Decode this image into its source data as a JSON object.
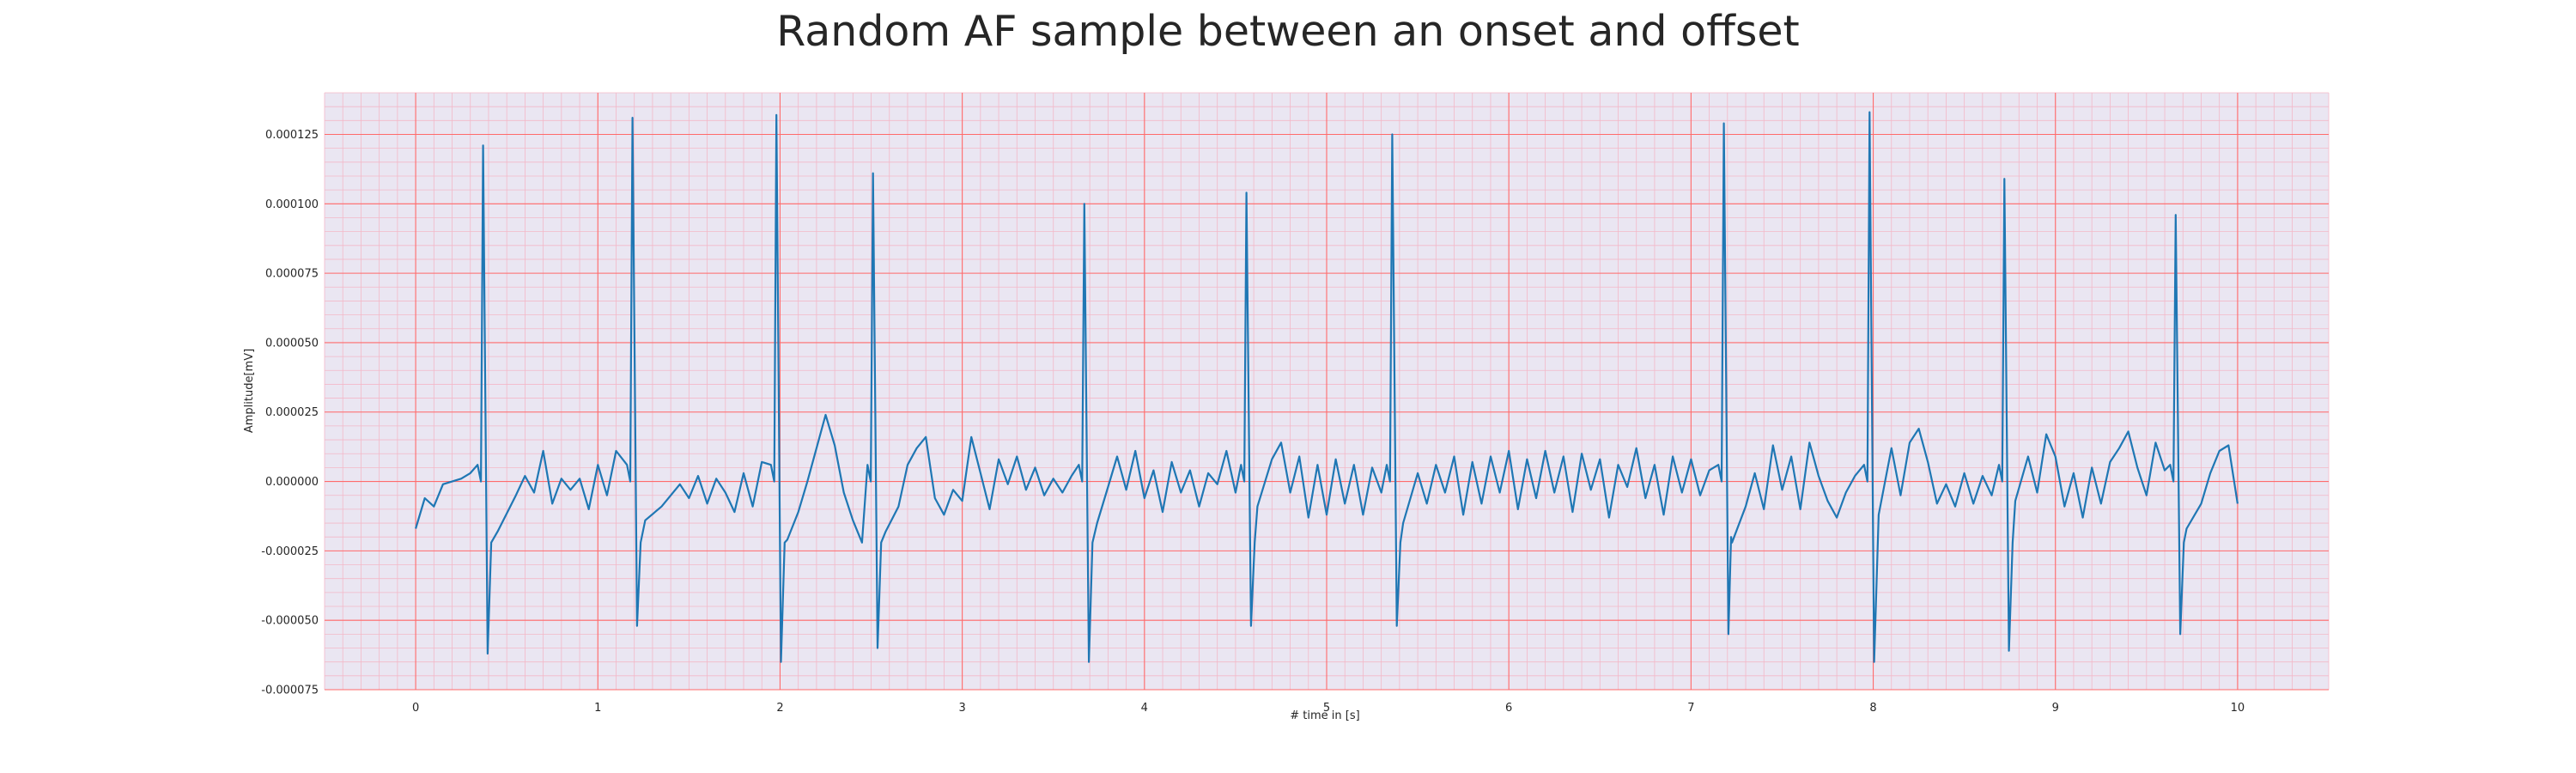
{
  "chart_data": {
    "type": "line",
    "title": "Random AF sample between an onset and offset",
    "xlabel": "# time in [s]",
    "ylabel": "Amplitude[mV]",
    "xlim": [
      -0.5,
      10.5
    ],
    "ylim": [
      -7.5e-05,
      0.00014
    ],
    "x_ticks": [
      0,
      1,
      2,
      3,
      4,
      5,
      6,
      7,
      8,
      9,
      10
    ],
    "x_tick_labels": [
      "0",
      "1",
      "2",
      "3",
      "4",
      "5",
      "6",
      "7",
      "8",
      "9",
      "10"
    ],
    "y_ticks": [
      -7.5e-05,
      -5e-05,
      -2.5e-05,
      0.0,
      2.5e-05,
      5e-05,
      7.5e-05,
      0.0001,
      0.000125
    ],
    "y_tick_labels": [
      "-0.000075",
      "-0.000050",
      "-0.000025",
      "0.000000",
      "0.000025",
      "0.000050",
      "0.000075",
      "0.000100",
      "0.000125"
    ],
    "grid": true,
    "colors": {
      "line": "#1f77b4",
      "major_grid": "#ff6b6b",
      "minor_grid": "#f3b8c8",
      "plot_bg": "#eae6f2",
      "text": "#262626"
    },
    "beats": [
      {
        "time": 0.37,
        "peak": 0.000121,
        "trough": -6.2e-05
      },
      {
        "time": 1.19,
        "peak": 0.000131,
        "trough": -5.2e-05
      },
      {
        "time": 1.98,
        "peak": 0.000132,
        "trough": -6.5e-05
      },
      {
        "time": 2.51,
        "peak": 0.000111,
        "trough": -6e-05
      },
      {
        "time": 3.67,
        "peak": 0.0001,
        "trough": -6.5e-05
      },
      {
        "time": 4.56,
        "peak": 0.000104,
        "trough": -5.2e-05
      },
      {
        "time": 5.36,
        "peak": 0.000125,
        "trough": -5.2e-05
      },
      {
        "time": 7.18,
        "peak": 0.000129,
        "trough": -5.5e-05
      },
      {
        "time": 7.98,
        "peak": 0.000133,
        "trough": -6.5e-05
      },
      {
        "time": 8.72,
        "peak": 0.000109,
        "trough": -6.1e-05
      },
      {
        "time": 9.66,
        "peak": 9.6e-05,
        "trough": -5.5e-05
      }
    ],
    "baseline": [
      [
        0.0,
        -1.7e-05
      ],
      [
        0.05,
        -6e-06
      ],
      [
        0.1,
        -9e-06
      ],
      [
        0.15,
        -1e-06
      ],
      [
        0.2,
        0.0
      ],
      [
        0.25,
        1e-06
      ],
      [
        0.3,
        3e-06
      ],
      [
        0.45,
        -1.8e-05
      ],
      [
        0.55,
        -5e-06
      ],
      [
        0.6,
        2e-06
      ],
      [
        0.65,
        -4e-06
      ],
      [
        0.7,
        1.1e-05
      ],
      [
        0.75,
        -8e-06
      ],
      [
        0.8,
        1e-06
      ],
      [
        0.85,
        -3e-06
      ],
      [
        0.9,
        1e-06
      ],
      [
        0.95,
        -1e-05
      ],
      [
        1.0,
        6e-06
      ],
      [
        1.05,
        -5e-06
      ],
      [
        1.1,
        1.1e-05
      ],
      [
        1.26,
        -1.4e-05
      ],
      [
        1.35,
        -9e-06
      ],
      [
        1.45,
        -1e-06
      ],
      [
        1.5,
        -6e-06
      ],
      [
        1.55,
        2e-06
      ],
      [
        1.6,
        -8e-06
      ],
      [
        1.65,
        1e-06
      ],
      [
        1.7,
        -4e-06
      ],
      [
        1.75,
        -1.1e-05
      ],
      [
        1.8,
        3e-06
      ],
      [
        1.85,
        -9e-06
      ],
      [
        1.9,
        7e-06
      ],
      [
        2.04,
        -2.1e-05
      ],
      [
        2.1,
        -1.1e-05
      ],
      [
        2.15,
        0.0
      ],
      [
        2.2,
        1.2e-05
      ],
      [
        2.25,
        2.4e-05
      ],
      [
        2.3,
        1.3e-05
      ],
      [
        2.35,
        -4e-06
      ],
      [
        2.4,
        -1.4e-05
      ],
      [
        2.45,
        -2.2e-05
      ],
      [
        2.58,
        -1.8e-05
      ],
      [
        2.65,
        -9e-06
      ],
      [
        2.7,
        6e-06
      ],
      [
        2.75,
        1.2e-05
      ],
      [
        2.8,
        1.6e-05
      ],
      [
        2.85,
        -6e-06
      ],
      [
        2.9,
        -1.2e-05
      ],
      [
        2.95,
        -3e-06
      ],
      [
        3.0,
        -7e-06
      ],
      [
        3.05,
        1.6e-05
      ],
      [
        3.1,
        3e-06
      ],
      [
        3.15,
        -1e-05
      ],
      [
        3.2,
        8e-06
      ],
      [
        3.25,
        -1e-06
      ],
      [
        3.3,
        9e-06
      ],
      [
        3.35,
        -3e-06
      ],
      [
        3.4,
        5e-06
      ],
      [
        3.45,
        -5e-06
      ],
      [
        3.5,
        1e-06
      ],
      [
        3.55,
        -4e-06
      ],
      [
        3.6,
        2e-06
      ],
      [
        3.74,
        -1.5e-05
      ],
      [
        3.8,
        -2e-06
      ],
      [
        3.85,
        9e-06
      ],
      [
        3.9,
        -3e-06
      ],
      [
        3.95,
        1.1e-05
      ],
      [
        4.0,
        -6e-06
      ],
      [
        4.05,
        4e-06
      ],
      [
        4.1,
        -1.1e-05
      ],
      [
        4.15,
        7e-06
      ],
      [
        4.2,
        -4e-06
      ],
      [
        4.25,
        4e-06
      ],
      [
        4.3,
        -9e-06
      ],
      [
        4.35,
        3e-06
      ],
      [
        4.4,
        -1e-06
      ],
      [
        4.45,
        1.1e-05
      ],
      [
        4.5,
        -4e-06
      ],
      [
        4.62,
        -9e-06
      ],
      [
        4.7,
        8e-06
      ],
      [
        4.75,
        1.4e-05
      ],
      [
        4.8,
        -4e-06
      ],
      [
        4.85,
        9e-06
      ],
      [
        4.9,
        -1.3e-05
      ],
      [
        4.95,
        6e-06
      ],
      [
        5.0,
        -1.2e-05
      ],
      [
        5.05,
        8e-06
      ],
      [
        5.1,
        -8e-06
      ],
      [
        5.15,
        6e-06
      ],
      [
        5.2,
        -1.2e-05
      ],
      [
        5.25,
        5e-06
      ],
      [
        5.3,
        -4e-06
      ],
      [
        5.42,
        -1.5e-05
      ],
      [
        5.5,
        3e-06
      ],
      [
        5.55,
        -8e-06
      ],
      [
        5.6,
        6e-06
      ],
      [
        5.65,
        -4e-06
      ],
      [
        5.7,
        9e-06
      ],
      [
        5.75,
        -1.2e-05
      ],
      [
        5.8,
        7e-06
      ],
      [
        5.85,
        -8e-06
      ],
      [
        5.9,
        9e-06
      ],
      [
        5.95,
        -4e-06
      ],
      [
        6.0,
        1.1e-05
      ],
      [
        6.05,
        -1e-05
      ],
      [
        6.1,
        8e-06
      ],
      [
        6.15,
        -6e-06
      ],
      [
        6.2,
        1.1e-05
      ],
      [
        6.25,
        -4e-06
      ],
      [
        6.3,
        9e-06
      ],
      [
        6.35,
        -1.1e-05
      ],
      [
        6.4,
        1e-05
      ],
      [
        6.45,
        -3e-06
      ],
      [
        6.5,
        8e-06
      ],
      [
        6.55,
        -1.3e-05
      ],
      [
        6.6,
        6e-06
      ],
      [
        6.65,
        -2e-06
      ],
      [
        6.7,
        1.2e-05
      ],
      [
        6.75,
        -6e-06
      ],
      [
        6.8,
        6e-06
      ],
      [
        6.85,
        -1.2e-05
      ],
      [
        6.9,
        9e-06
      ],
      [
        6.95,
        -4e-06
      ],
      [
        7.0,
        8e-06
      ],
      [
        7.05,
        -5e-06
      ],
      [
        7.1,
        4e-06
      ],
      [
        7.22,
        -2e-05
      ],
      [
        7.3,
        -9e-06
      ],
      [
        7.35,
        3e-06
      ],
      [
        7.4,
        -1e-05
      ],
      [
        7.45,
        1.3e-05
      ],
      [
        7.5,
        -3e-06
      ],
      [
        7.55,
        9e-06
      ],
      [
        7.6,
        -1e-05
      ],
      [
        7.65,
        1.4e-05
      ],
      [
        7.7,
        2e-06
      ],
      [
        7.75,
        -7e-06
      ],
      [
        7.8,
        -1.3e-05
      ],
      [
        7.85,
        -4e-06
      ],
      [
        7.9,
        2e-06
      ],
      [
        8.03,
        -1.2e-05
      ],
      [
        8.1,
        1.2e-05
      ],
      [
        8.15,
        -5e-06
      ],
      [
        8.2,
        1.4e-05
      ],
      [
        8.25,
        1.9e-05
      ],
      [
        8.3,
        7e-06
      ],
      [
        8.35,
        -8e-06
      ],
      [
        8.4,
        -1e-06
      ],
      [
        8.45,
        -9e-06
      ],
      [
        8.5,
        3e-06
      ],
      [
        8.55,
        -8e-06
      ],
      [
        8.6,
        2e-06
      ],
      [
        8.65,
        -5e-06
      ],
      [
        8.78,
        -7e-06
      ],
      [
        8.85,
        9e-06
      ],
      [
        8.9,
        -4e-06
      ],
      [
        8.95,
        1.7e-05
      ],
      [
        9.0,
        9e-06
      ],
      [
        9.05,
        -9e-06
      ],
      [
        9.1,
        3e-06
      ],
      [
        9.15,
        -1.3e-05
      ],
      [
        9.2,
        5e-06
      ],
      [
        9.25,
        -8e-06
      ],
      [
        9.3,
        7e-06
      ],
      [
        9.35,
        1.2e-05
      ],
      [
        9.4,
        1.8e-05
      ],
      [
        9.45,
        5e-06
      ],
      [
        9.5,
        -5e-06
      ],
      [
        9.55,
        1.4e-05
      ],
      [
        9.6,
        4e-06
      ],
      [
        9.72,
        -1.7e-05
      ],
      [
        9.8,
        -8e-06
      ],
      [
        9.85,
        3e-06
      ],
      [
        9.9,
        1.1e-05
      ],
      [
        9.95,
        1.3e-05
      ],
      [
        10.0,
        -8e-06
      ]
    ]
  }
}
